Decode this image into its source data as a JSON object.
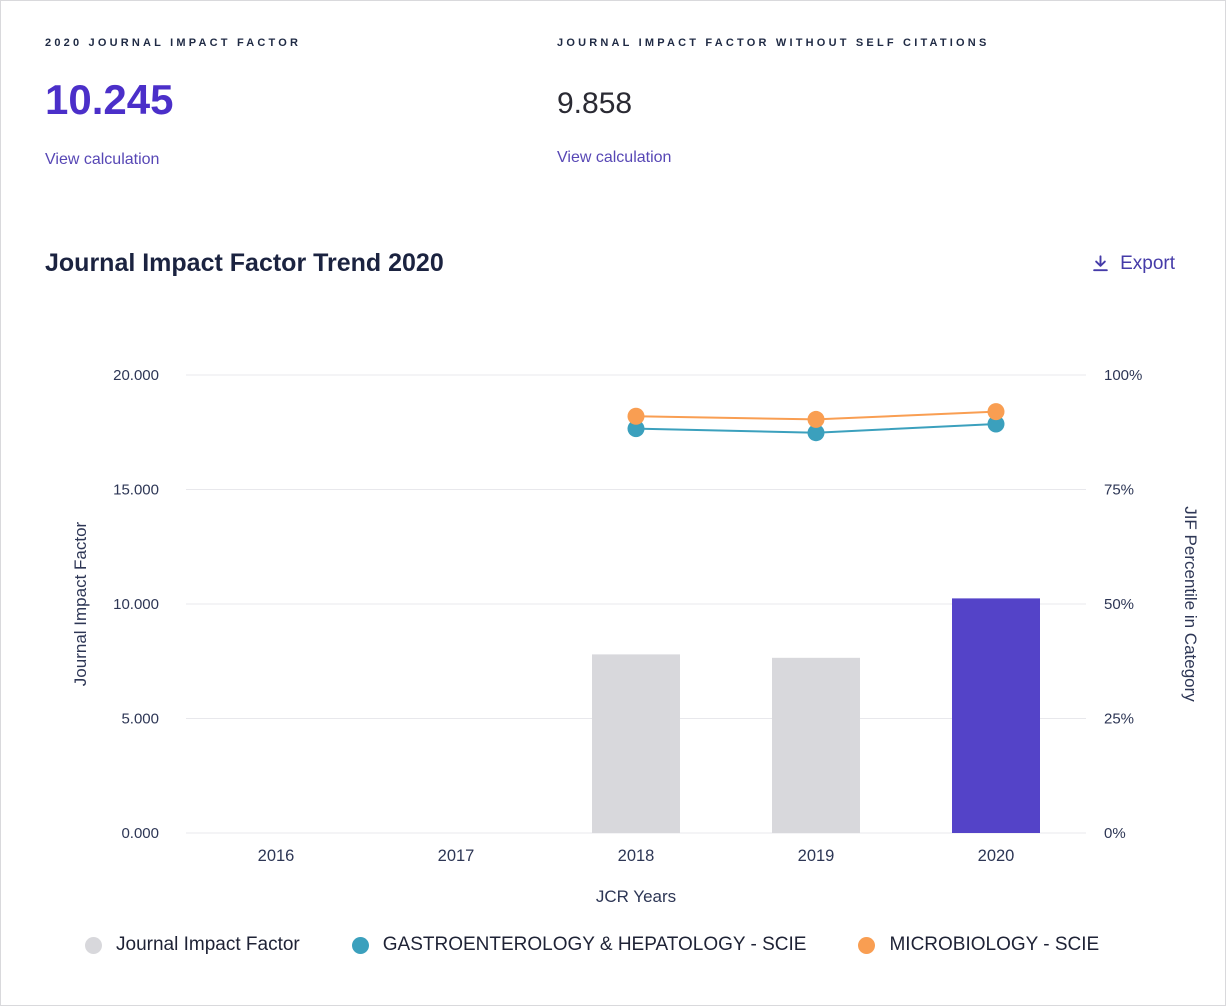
{
  "colors": {
    "accent_purple": "#4b2fc9",
    "bar_purple": "#5443c8",
    "link_purple": "#5747b5",
    "bar_gray": "#d8d8dc",
    "teal": "#3ba0bd",
    "orange": "#f99e52",
    "text_dark": "#202945",
    "gridline": "#e8e8ec"
  },
  "stats": [
    {
      "label": "2020 JOURNAL IMPACT FACTOR",
      "value": "10.245",
      "link_label": "View calculation"
    },
    {
      "label": "JOURNAL IMPACT FACTOR WITHOUT SELF CITATIONS",
      "value": "9.858",
      "link_label": "View calculation"
    }
  ],
  "section": {
    "title": "Journal Impact Factor Trend 2020",
    "export_label": "Export"
  },
  "chart_data": {
    "type": "bar+line",
    "title": "Journal Impact Factor Trend 2020",
    "categories": [
      "2016",
      "2017",
      "2018",
      "2019",
      "2020"
    ],
    "xlabel": "JCR Years",
    "grid": "horizontal",
    "legend_position": "bottom",
    "left_axis": {
      "label": "Journal Impact Factor",
      "range": [
        0,
        20
      ],
      "ticks": [
        0,
        5,
        10,
        15,
        20
      ],
      "tick_labels": [
        "0.000",
        "5.000",
        "10.000",
        "15.000",
        "20.000"
      ]
    },
    "right_axis": {
      "label": "JIF Percentile in Category",
      "range": [
        0,
        100
      ],
      "ticks": [
        0,
        25,
        50,
        75,
        100
      ],
      "tick_labels": [
        "0%",
        "25%",
        "50%",
        "75%",
        "100%"
      ]
    },
    "bar_series": {
      "name": "Journal Impact Factor",
      "axis": "left",
      "values": [
        null,
        null,
        7.8,
        7.65,
        10.245
      ],
      "colors": [
        "#d8d8dc",
        "#d8d8dc",
        "#d8d8dc",
        "#d8d8dc",
        "#5443c8"
      ]
    },
    "line_series": [
      {
        "name": "GASTROENTEROLOGY & HEPATOLOGY - SCIE",
        "axis": "right",
        "color": "#3ba0bd",
        "values": [
          null,
          null,
          88.3,
          87.4,
          89.3
        ]
      },
      {
        "name": "MICROBIOLOGY - SCIE",
        "axis": "right",
        "color": "#f99e52",
        "values": [
          null,
          null,
          91.0,
          90.3,
          92.0
        ]
      }
    ],
    "legend": [
      {
        "label": "Journal Impact Factor",
        "color": "#d8d8dc"
      },
      {
        "label": "GASTROENTEROLOGY & HEPATOLOGY - SCIE",
        "color": "#3ba0bd"
      },
      {
        "label": "MICROBIOLOGY - SCIE",
        "color": "#f99e52"
      }
    ]
  }
}
